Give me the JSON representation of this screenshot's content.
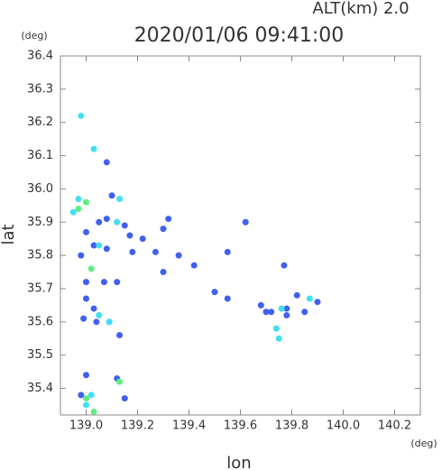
{
  "chart_data": {
    "type": "scatter",
    "title": "2020/01/06 09:41:00",
    "subtitle": "ALT(km) 2.0",
    "y_unit": "(deg)",
    "x_unit": "(deg)",
    "x_label": "lon",
    "y_label": "lat",
    "xlim": [
      138.9,
      140.3
    ],
    "ylim": [
      35.32,
      36.4
    ],
    "xticks": [
      {
        "value": 139.0,
        "label": "139.0"
      },
      139.2,
      139.4,
      139.6,
      139.8,
      {
        "value": 140.0,
        "label": "140.0"
      },
      140.2
    ],
    "yticks": [
      35.4,
      35.5,
      35.6,
      35.7,
      35.8,
      35.9,
      {
        "value": 36.0,
        "label": "36.0"
      },
      36.1,
      36.2,
      36.3,
      36.4
    ],
    "series": [
      {
        "color": "#4060f0",
        "x": [
          139.08,
          139.0,
          139.05,
          139.08,
          139.1,
          139.15,
          139.17,
          139.22,
          139.3,
          139.32,
          139.36,
          139.03,
          139.08,
          138.98,
          139.0,
          139.07,
          139.12,
          139.18,
          139.27,
          139.3,
          139.42,
          139.55,
          139.5,
          139.55,
          139.68,
          139.72,
          139.78,
          139.82,
          139.85,
          139.9,
          139.77,
          139.0,
          139.03,
          138.99,
          139.04,
          139.09,
          139.13,
          139.0,
          139.15,
          139.12,
          138.98,
          139.62,
          139.78,
          139.7
        ],
        "values": [
          36.08,
          35.87,
          35.9,
          35.91,
          35.98,
          35.89,
          35.86,
          35.85,
          35.88,
          35.91,
          35.8,
          35.83,
          35.82,
          35.8,
          35.72,
          35.72,
          35.72,
          35.81,
          35.81,
          35.75,
          35.77,
          35.81,
          35.69,
          35.67,
          35.65,
          35.63,
          35.64,
          35.68,
          35.63,
          35.66,
          35.77,
          35.67,
          35.64,
          35.61,
          35.6,
          35.6,
          35.56,
          35.44,
          35.37,
          35.43,
          35.38,
          35.9,
          35.62,
          35.63
        ]
      },
      {
        "color": "#40e0f0",
        "x": [
          138.98,
          139.03,
          138.97,
          138.95,
          139.12,
          139.09,
          139.05,
          139.87,
          139.75,
          139.76,
          139.74,
          139.02,
          139.0,
          139.05,
          139.13
        ],
        "values": [
          36.22,
          36.12,
          35.97,
          35.93,
          35.9,
          35.6,
          35.62,
          35.67,
          35.55,
          35.64,
          35.58,
          35.38,
          35.35,
          35.83,
          35.97
        ]
      },
      {
        "color": "#60ee80",
        "x": [
          139.0,
          139.02,
          139.13,
          139.03,
          139.0,
          138.97
        ],
        "values": [
          35.96,
          35.76,
          35.42,
          35.33,
          35.37,
          35.94
        ]
      }
    ]
  }
}
